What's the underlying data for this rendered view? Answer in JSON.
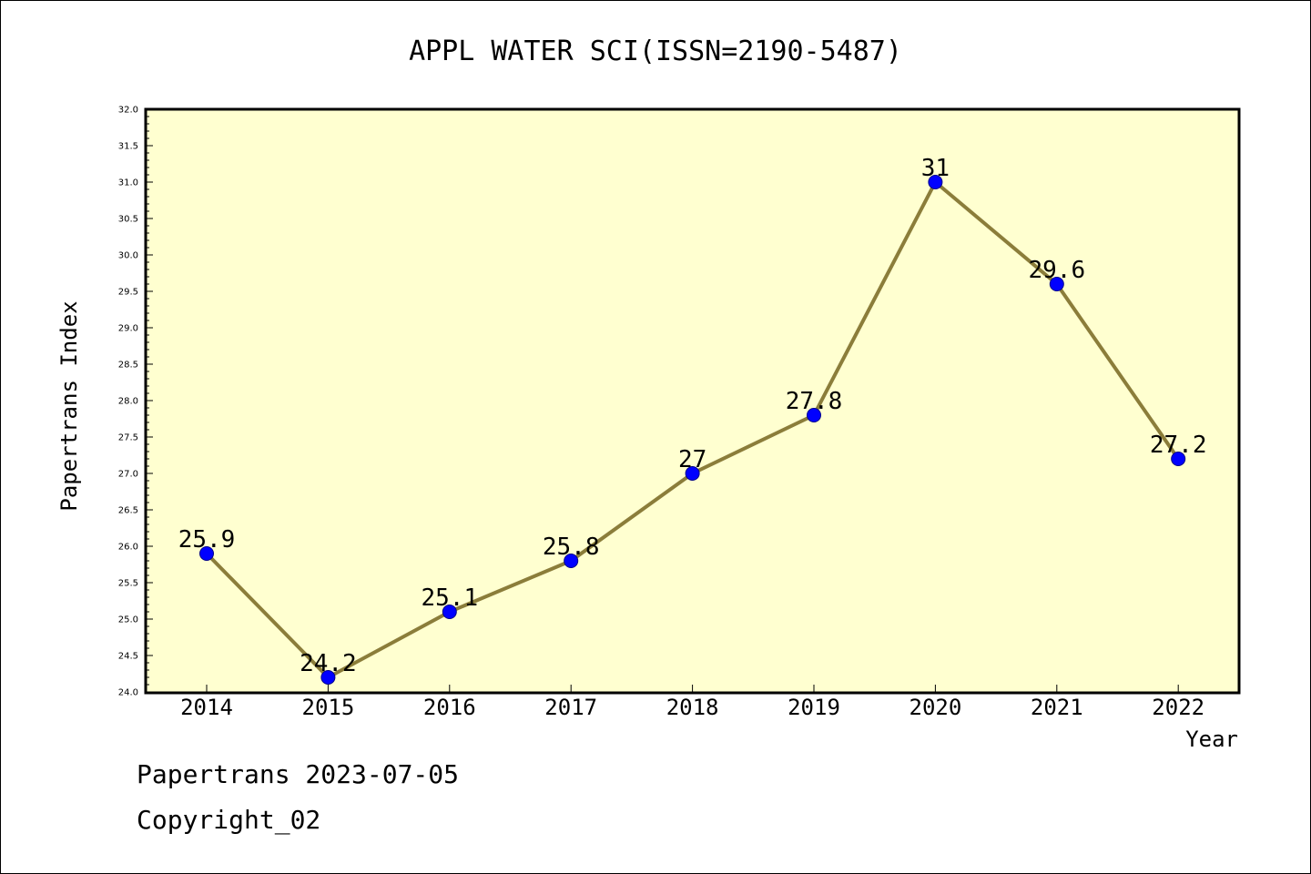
{
  "chart_data": {
    "type": "line",
    "title": "APPL WATER SCI(ISSN=2190-5487)",
    "xlabel": "Year",
    "ylabel": "Papertrans Index",
    "categories": [
      "2014",
      "2015",
      "2016",
      "2017",
      "2018",
      "2019",
      "2020",
      "2021",
      "2022"
    ],
    "series": [
      {
        "values": [
          25.9,
          24.2,
          25.1,
          25.8,
          27.0,
          27.8,
          31.0,
          29.6,
          27.2
        ]
      }
    ],
    "data_labels": [
      "25.9",
      "24.2",
      "25.1",
      "25.8",
      "27",
      "27.8",
      "31",
      "29.6",
      "27.2"
    ],
    "ylim": [
      24.0,
      32.0
    ],
    "yticks": [
      "24.0",
      "24.5",
      "25.0",
      "25.5",
      "26.0",
      "26.5",
      "27.0",
      "27.5",
      "28.0",
      "28.5",
      "29.0",
      "29.5",
      "30.0",
      "30.5",
      "31.0",
      "31.5",
      "32.0"
    ],
    "grid": false,
    "colors": {
      "plot_background": "#ffffd0",
      "line": "#8b7d3a",
      "marker": "#0000ff"
    }
  },
  "footer": {
    "line1": "Papertrans 2023-07-05",
    "line2": "Copyright_02"
  }
}
